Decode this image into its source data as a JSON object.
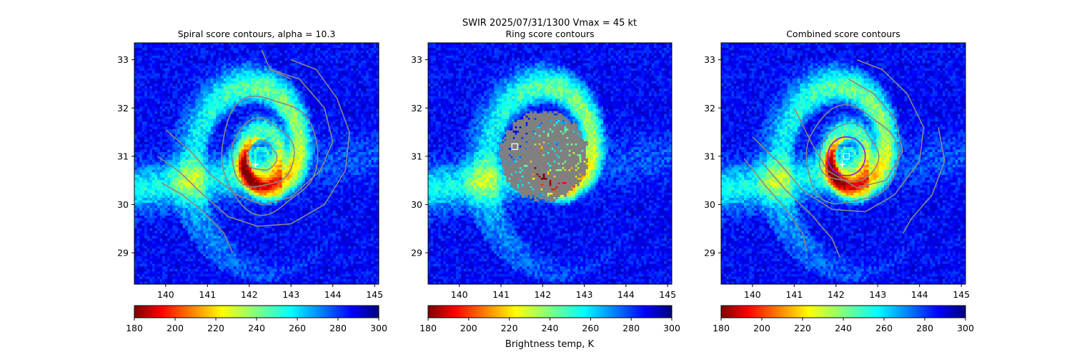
{
  "figure": {
    "suptitle_line1": "SWIR  2025/07/31/1300    Vmax = 45 kt",
    "colorbar_label": "Brightness temp, K"
  },
  "chart_data": [
    {
      "type": "heatmap",
      "title": "Spiral score contours, alpha = 10.3",
      "xlim": [
        139.25,
        145.1
      ],
      "ylim": [
        28.35,
        33.35
      ],
      "xticks": [
        140,
        141,
        142,
        143,
        144,
        145
      ],
      "yticks": [
        29,
        30,
        31,
        32,
        33
      ],
      "storm": {
        "eye_center": [
          142.3,
          31.0
        ],
        "eye_radius_deg": 0.35
      },
      "markers": [
        {
          "kind": "plus",
          "x": 142.15,
          "y": 30.83,
          "color": "#ffffff"
        }
      ],
      "contours": {
        "color": "#888888",
        "rings": [
          {
            "cx": 142.3,
            "cy": 31.0,
            "rx": 0.35,
            "ry": 0.3
          },
          {
            "cx": 142.3,
            "cy": 31.05,
            "rx": 0.75,
            "ry": 0.7
          },
          {
            "cx": 142.45,
            "cy": 31.05,
            "rx": 1.15,
            "ry": 1.2
          }
        ],
        "lines": [
          [
            [
              140.0,
              31.55
            ],
            [
              140.6,
              31.1
            ],
            [
              141.1,
              30.6
            ],
            [
              141.7,
              30.2
            ],
            [
              142.3,
              30.0
            ],
            [
              143.0,
              30.15
            ],
            [
              143.7,
              30.7
            ],
            [
              144.0,
              31.3
            ],
            [
              143.8,
              32.0
            ],
            [
              143.2,
              32.6
            ],
            [
              142.5,
              32.8
            ]
          ],
          [
            [
              139.8,
              31.0
            ],
            [
              140.3,
              30.7
            ],
            [
              140.9,
              30.2
            ],
            [
              141.5,
              29.75
            ],
            [
              142.2,
              29.55
            ],
            [
              143.0,
              29.6
            ],
            [
              143.8,
              30.0
            ],
            [
              144.3,
              30.7
            ],
            [
              144.4,
              31.5
            ],
            [
              144.1,
              32.2
            ],
            [
              143.6,
              32.8
            ],
            [
              143.0,
              33.0
            ]
          ],
          [
            [
              139.9,
              30.45
            ],
            [
              140.4,
              30.2
            ],
            [
              140.9,
              29.85
            ],
            [
              141.4,
              29.4
            ],
            [
              141.6,
              29.0
            ]
          ],
          [
            [
              142.3,
              33.2
            ],
            [
              142.5,
              32.8
            ],
            [
              143.0,
              32.6
            ]
          ]
        ]
      },
      "overlay": null,
      "colorbar": {
        "vmin": 180,
        "vmax": 300,
        "ticks": [
          180,
          200,
          220,
          240,
          260,
          280,
          300
        ],
        "cmap": "jet_r"
      }
    },
    {
      "type": "heatmap",
      "title": "Ring score contours",
      "xlim": [
        139.25,
        145.1
      ],
      "ylim": [
        28.35,
        33.35
      ],
      "xticks": [
        140,
        141,
        142,
        143,
        144,
        145
      ],
      "yticks": [
        29,
        30,
        31,
        32,
        33
      ],
      "storm": {
        "eye_center": [
          142.3,
          31.0
        ],
        "eye_radius_deg": 0.35
      },
      "markers": [
        {
          "kind": "square",
          "x": 141.33,
          "y": 31.2,
          "color": "#ffffff"
        }
      ],
      "contours": null,
      "overlay": {
        "kind": "disk",
        "cx": 142.0,
        "cy": 31.03,
        "rx": 1.08,
        "ry": 0.95,
        "color": "#808080"
      },
      "colorbar": {
        "vmin": 180,
        "vmax": 300,
        "ticks": [
          180,
          200,
          220,
          240,
          260,
          280,
          300
        ],
        "cmap": "jet_r"
      }
    },
    {
      "type": "heatmap",
      "title": "Combined score contours",
      "xlim": [
        139.25,
        145.1
      ],
      "ylim": [
        28.35,
        33.35
      ],
      "xticks": [
        140,
        141,
        142,
        143,
        144,
        145
      ],
      "yticks": [
        29,
        30,
        31,
        32,
        33
      ],
      "storm": {
        "eye_center": [
          142.3,
          31.0
        ],
        "eye_radius_deg": 0.35
      },
      "markers": [
        {
          "kind": "square",
          "x": 142.25,
          "y": 31.0,
          "color": "#ffffff"
        },
        {
          "kind": "plus",
          "x": 142.15,
          "y": 30.83,
          "color": "#ffffff"
        }
      ],
      "contours": {
        "color": "#888888",
        "highlight_color": "#8a2be2",
        "highlight": {
          "cx": 142.25,
          "cy": 31.0,
          "rx": 0.45,
          "ry": 0.4
        },
        "rings": [
          {
            "cx": 142.3,
            "cy": 31.05,
            "rx": 0.7,
            "ry": 0.6
          },
          {
            "cx": 142.35,
            "cy": 31.0,
            "rx": 1.1,
            "ry": 1.0
          }
        ],
        "lines": [
          [
            [
              141.0,
              32.0
            ],
            [
              141.4,
              31.3
            ],
            [
              141.8,
              30.7
            ],
            [
              142.5,
              30.35
            ],
            [
              143.2,
              30.5
            ],
            [
              143.6,
              31.1
            ],
            [
              143.4,
              31.8
            ],
            [
              142.9,
              32.3
            ],
            [
              142.3,
              32.6
            ]
          ],
          [
            [
              140.0,
              31.4
            ],
            [
              140.6,
              30.9
            ],
            [
              141.2,
              30.3
            ],
            [
              141.9,
              29.9
            ],
            [
              142.7,
              29.85
            ],
            [
              143.4,
              30.2
            ],
            [
              144.0,
              30.9
            ],
            [
              144.1,
              31.6
            ],
            [
              143.7,
              32.3
            ],
            [
              143.1,
              32.8
            ],
            [
              142.5,
              33.0
            ]
          ],
          [
            [
              139.8,
              30.95
            ],
            [
              140.3,
              30.4
            ],
            [
              140.8,
              29.9
            ],
            [
              141.2,
              29.4
            ],
            [
              141.3,
              29.05
            ]
          ],
          [
            [
              140.2,
              30.9
            ],
            [
              140.8,
              30.3
            ],
            [
              141.4,
              29.8
            ],
            [
              141.9,
              29.3
            ],
            [
              142.1,
              28.9
            ]
          ],
          [
            [
              144.45,
              31.6
            ],
            [
              144.6,
              30.9
            ],
            [
              144.3,
              30.2
            ],
            [
              143.8,
              29.7
            ],
            [
              143.6,
              29.4
            ]
          ]
        ]
      },
      "overlay": null,
      "colorbar": {
        "vmin": 180,
        "vmax": 300,
        "ticks": [
          180,
          200,
          220,
          240,
          260,
          280,
          300
        ],
        "cmap": "jet_r"
      }
    }
  ]
}
